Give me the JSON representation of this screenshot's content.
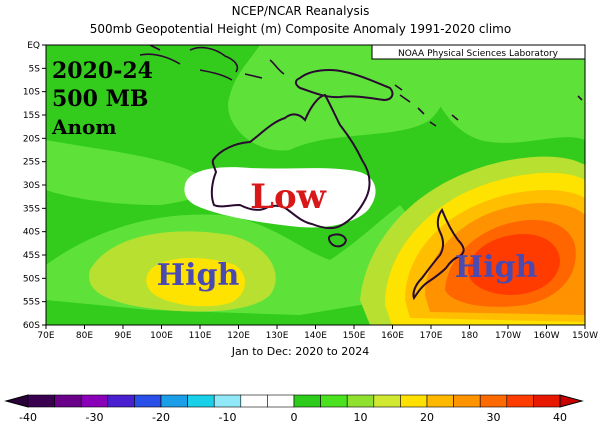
{
  "header": {
    "line1": "NCEP/NCAR Reanalysis",
    "line2": "500mb Geopotential Height (m) Composite Anomaly 1991-2020 climo"
  },
  "credit": "NOAA Physical Sciences Laboratory",
  "overlay": {
    "years": "2020-24",
    "level": "500 MB",
    "kind": "Anom"
  },
  "annotations": {
    "low": "Low",
    "high_west": "High",
    "high_east": "High"
  },
  "subtitle": "Jan to Dec: 2020 to 2024",
  "lat_labels": [
    "EQ",
    "5S",
    "10S",
    "15S",
    "20S",
    "25S",
    "30S",
    "35S",
    "40S",
    "45S",
    "50S",
    "55S",
    "60S"
  ],
  "lon_labels": [
    "70E",
    "80E",
    "90E",
    "100E",
    "110E",
    "120E",
    "130E",
    "140E",
    "150E",
    "160E",
    "170E",
    "180",
    "170W",
    "160W",
    "150W"
  ],
  "colorbar": {
    "labels": [
      "-40",
      "-30",
      "-20",
      "-10",
      "0",
      "10",
      "20",
      "30",
      "40"
    ],
    "colors": {
      "neg": [
        "#3a0050",
        "#6a008a",
        "#8a00b8",
        "#4a1fd0",
        "#2a4fe8",
        "#1a9ee8",
        "#18d0e8",
        "#90e8f8"
      ],
      "pos": [
        "#ffffff",
        "#ffffff",
        "#2ecc1a",
        "#4ae21e",
        "#90e030",
        "#d0e830",
        "#ffe000",
        "#ffb800",
        "#ff9400",
        "#ff6a00",
        "#ff3c00",
        "#e81800"
      ]
    }
  },
  "palette": {
    "green": "#33cc1c",
    "light_green": "#5ee23a",
    "yellow_green": "#b8e030",
    "yellow": "#ffe300",
    "gold": "#ffbf00",
    "orange": "#ff9200",
    "dark_orange": "#ff6600",
    "red_orange": "#ff3b00",
    "white": "#ffffff",
    "coast": "#2a0a30",
    "low_text": "#d81818",
    "high_text": "#4a4ab0"
  }
}
